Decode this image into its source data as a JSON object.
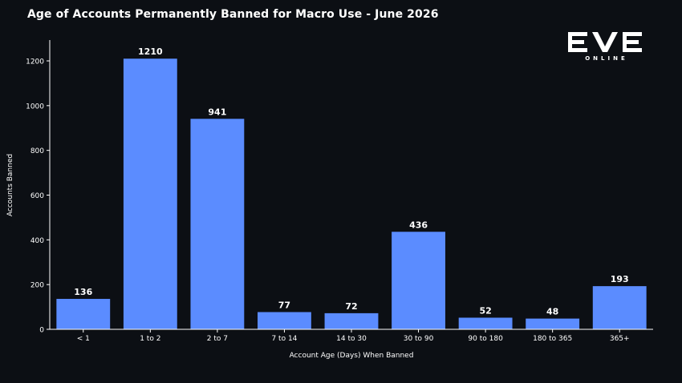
{
  "title": "Age of Accounts Permanently Banned for Macro Use - June 2026",
  "logo": {
    "main": "EVE",
    "sub": "ONLINE"
  },
  "colors": {
    "background": "#0c0f14",
    "bar": "#5b8cff",
    "text": "#ffffff",
    "axis": "#ffffff"
  },
  "chart_data": {
    "type": "bar",
    "categories": [
      "< 1",
      "1 to 2",
      "2 to 7",
      "7 to 14",
      "14 to 30",
      "30 to 90",
      "90 to 180",
      "180 to 365",
      "365+"
    ],
    "values": [
      136,
      1210,
      941,
      77,
      72,
      436,
      52,
      48,
      193
    ],
    "xlabel": "Account Age (Days) When Banned",
    "ylabel": "Accounts Banned",
    "ylim": [
      0,
      1280
    ],
    "yticks": [
      0,
      200,
      400,
      600,
      800,
      1000,
      1200
    ],
    "data_labels": true,
    "grid": false,
    "legend": "none"
  }
}
